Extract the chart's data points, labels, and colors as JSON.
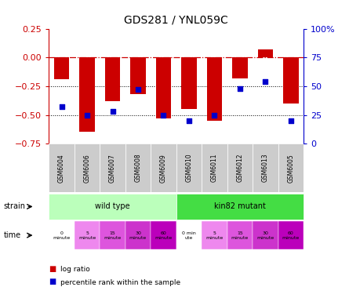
{
  "title": "GDS281 / YNL059C",
  "samples": [
    "GSM6004",
    "GSM6006",
    "GSM6007",
    "GSM6008",
    "GSM6009",
    "GSM6010",
    "GSM6011",
    "GSM6012",
    "GSM6013",
    "GSM6005"
  ],
  "log_ratio": [
    -0.19,
    -0.65,
    -0.38,
    -0.32,
    -0.53,
    -0.45,
    -0.55,
    -0.18,
    0.07,
    -0.4
  ],
  "percentile": [
    32,
    25,
    28,
    47,
    25,
    20,
    25,
    48,
    54,
    20
  ],
  "bar_color": "#cc0000",
  "dot_color": "#0000cc",
  "ylim_left": [
    -0.75,
    0.25
  ],
  "ylim_right": [
    0,
    100
  ],
  "yticks_left": [
    -0.75,
    -0.5,
    -0.25,
    0,
    0.25
  ],
  "yticks_right": [
    0,
    25,
    50,
    75,
    100
  ],
  "hline_y": 0,
  "dotted_lines": [
    -0.25,
    -0.5
  ],
  "strain_labels": [
    "wild type",
    "kin82 mutant"
  ],
  "strain_colors": [
    "#bbffbb",
    "#44dd44"
  ],
  "time_labels": [
    "0\nminute",
    "5\nminute",
    "15\nminute",
    "30\nminute",
    "60\nminute",
    "0 min\nute",
    "5\nminute",
    "15\nminute",
    "30\nminute",
    "60\nminute"
  ],
  "time_colors": [
    "#ffffff",
    "#ee88ee",
    "#dd55dd",
    "#cc33cc",
    "#bb00bb",
    "#ffffff",
    "#ee88ee",
    "#dd55dd",
    "#cc33cc",
    "#bb00bb"
  ],
  "legend_red": "log ratio",
  "legend_blue": "percentile rank within the sample",
  "bar_color_legend": "#cc0000",
  "dot_color_legend": "#0000cc"
}
